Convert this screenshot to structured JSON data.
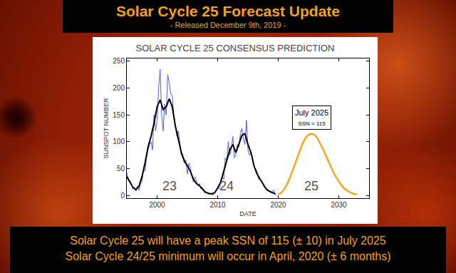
{
  "header": {
    "title": "Solar Cycle 25 Forecast Update",
    "subtitle": "- Released December 9th, 2019 -"
  },
  "footer": [
    "Solar Cycle 25 will have a peak SSN of 115 (± 10) in July 2025",
    "Solar Cycle 24/25 minimum will occur in April, 2020 (± 6 months)"
  ],
  "chart_data": {
    "type": "line",
    "title": "SOLAR CYCLE 25 CONSENSUS PREDICTION",
    "x_label": "DATE",
    "y_label": "SUNSPOT NUMBER",
    "xlim": [
      1995,
      2035
    ],
    "xticks": [
      2000,
      2010,
      2020,
      2030
    ],
    "ylim": [
      -5,
      255
    ],
    "yticks": [
      0,
      50,
      100,
      150,
      200,
      250
    ],
    "grid": false,
    "series": [
      {
        "color": "#4f5fe0",
        "x": [
          1995,
          1995.25,
          1995.5,
          1995.75,
          1996,
          1996.25,
          1996.5,
          1996.75,
          1997,
          1997.25,
          1997.5,
          1997.75,
          1998,
          1998.25,
          1998.5,
          1998.75,
          1999,
          1999.25,
          1999.5,
          1999.75,
          2000,
          2000.25,
          2000.5,
          2000.75,
          2001,
          2001.25,
          2001.5,
          2001.75,
          2002,
          2002.25,
          2002.5,
          2002.75,
          2003,
          2003.25,
          2003.5,
          2003.75,
          2004,
          2004.25,
          2004.5,
          2004.75,
          2005,
          2005.25,
          2005.5,
          2005.75,
          2006,
          2006.25,
          2006.5,
          2006.75,
          2007,
          2007.25,
          2007.5,
          2007.75,
          2008,
          2008.25,
          2008.5,
          2008.75,
          2009,
          2009.25,
          2009.5,
          2009.75,
          2010,
          2010.25,
          2010.5,
          2010.75,
          2011,
          2011.25,
          2011.5,
          2011.75,
          2012,
          2012.25,
          2012.5,
          2012.75,
          2013,
          2013.25,
          2013.5,
          2013.75,
          2014,
          2014.25,
          2014.5,
          2014.75,
          2015,
          2015.25,
          2015.5,
          2015.75,
          2016,
          2016.25,
          2016.5,
          2016.75,
          2017,
          2017.25,
          2017.5,
          2017.75,
          2018,
          2018.25,
          2018.5,
          2018.75,
          2019,
          2019.25,
          2019.5,
          2019.75
        ],
        "values": [
          42,
          30,
          28,
          22,
          12,
          14,
          8,
          18,
          10,
          22,
          25,
          48,
          45,
          70,
          85,
          95,
          100,
          85,
          150,
          120,
          140,
          200,
          235,
          150,
          120,
          170,
          150,
          225,
          210,
          190,
          185,
          150,
          130,
          110,
          120,
          95,
          75,
          70,
          60,
          65,
          40,
          60,
          50,
          35,
          25,
          35,
          25,
          18,
          22,
          12,
          15,
          6,
          5,
          6,
          2,
          3,
          2,
          1,
          5,
          8,
          15,
          12,
          25,
          35,
          30,
          70,
          65,
          100,
          75,
          85,
          110,
          70,
          75,
          95,
          90,
          115,
          125,
          105,
          95,
          140,
          85,
          75,
          80,
          70,
          55,
          50,
          45,
          30,
          30,
          25,
          20,
          15,
          15,
          8,
          10,
          5,
          7,
          10,
          3,
          1
        ]
      },
      {
        "color": "#000000",
        "x": [
          1995,
          1995.5,
          1996,
          1996.5,
          1997,
          1997.5,
          1998,
          1998.5,
          1999,
          1999.5,
          2000,
          2000.5,
          2001,
          2001.5,
          2002,
          2002.5,
          2003,
          2003.5,
          2004,
          2004.5,
          2005,
          2005.5,
          2006,
          2006.5,
          2007,
          2007.5,
          2008,
          2008.5,
          2009,
          2009.5,
          2010,
          2010.5,
          2011,
          2011.5,
          2012,
          2012.5,
          2013,
          2013.5,
          2014,
          2014.5,
          2015,
          2015.5,
          2016,
          2016.5,
          2017,
          2017.5,
          2018,
          2018.5,
          2019,
          2019.5
        ],
        "values": [
          35,
          25,
          15,
          11,
          17,
          35,
          60,
          90,
          110,
          135,
          165,
          178,
          160,
          165,
          180,
          165,
          130,
          105,
          80,
          65,
          55,
          45,
          30,
          22,
          18,
          12,
          6,
          4,
          3,
          5,
          14,
          25,
          45,
          65,
          85,
          95,
          80,
          95,
          112,
          115,
          95,
          80,
          55,
          40,
          30,
          20,
          12,
          8,
          5,
          3
        ]
      },
      {
        "color": "#f5a623",
        "x": [
          2020,
          2020.5,
          2021,
          2021.5,
          2022,
          2022.5,
          2023,
          2023.5,
          2024,
          2024.5,
          2025,
          2025.5,
          2026,
          2026.5,
          2027,
          2027.5,
          2028,
          2028.5,
          2029,
          2029.5,
          2030,
          2030.5,
          2031,
          2031.5,
          2032,
          2032.5,
          2033
        ],
        "values": [
          2,
          5,
          12,
          22,
          35,
          50,
          66,
          82,
          96,
          107,
          113,
          115,
          113,
          106,
          96,
          84,
          71,
          58,
          46,
          35,
          26,
          18,
          12,
          8,
          5,
          3,
          2
        ]
      }
    ],
    "annotations": [
      {
        "text": "23",
        "x": 2002,
        "y": 18
      },
      {
        "text": "24",
        "x": 2011.5,
        "y": 18
      },
      {
        "text": "25",
        "x": 2025.5,
        "y": 18
      },
      {
        "text": "July 2025",
        "subtext": "SSN = 115",
        "x": 2025.5,
        "y": 145
      }
    ]
  }
}
